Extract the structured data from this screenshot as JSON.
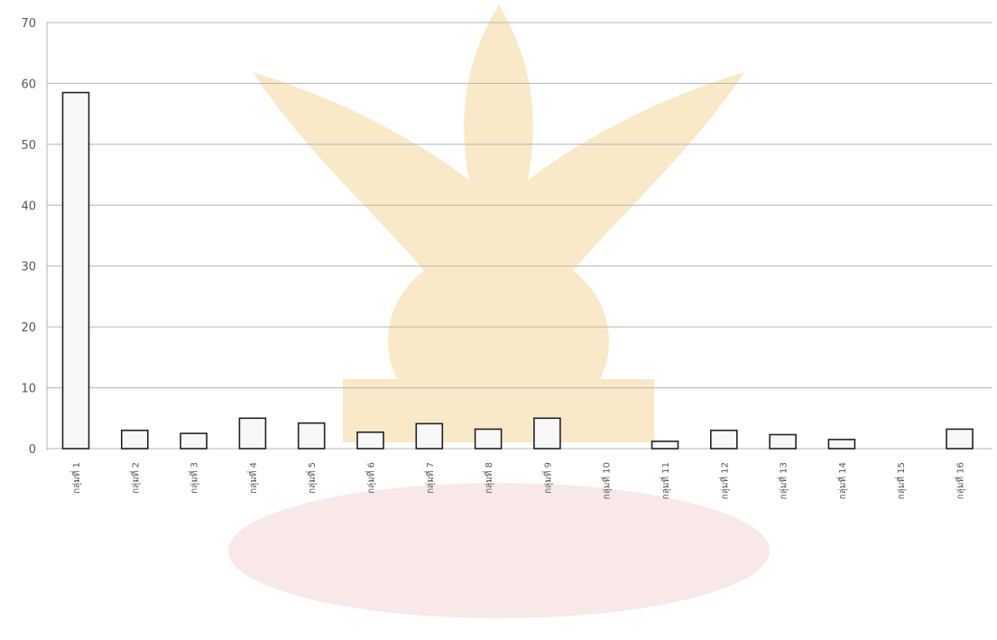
{
  "chart_data": {
    "type": "bar",
    "title": "",
    "xlabel": "",
    "ylabel": "",
    "ylim": [
      0,
      70
    ],
    "yticks": [
      0,
      10,
      20,
      30,
      40,
      50,
      60,
      70
    ],
    "ytick_labels": [
      "0",
      "10",
      "20",
      "30",
      "40",
      "50",
      "60",
      "70"
    ],
    "grid": true,
    "categories": [
      "กลุ่มที่ 1",
      "กลุ่มที่ 2",
      "กลุ่มที่ 3",
      "กลุ่มที่ 4",
      "กลุ่มที่ 5",
      "กลุ่มที่ 6",
      "กลุ่มที่ 7",
      "กลุ่มที่ 8",
      "กลุ่มที่ 9",
      "กลุ่มที่ 10",
      "กลุ่มที่ 11",
      "กลุ่มที่ 12",
      "กลุ่มที่ 13",
      "กลุ่มที่ 14",
      "กลุ่มที่ 15",
      "กลุ่มที่ 16"
    ],
    "values": [
      58.5,
      3.0,
      2.5,
      5.0,
      4.2,
      2.7,
      4.1,
      3.2,
      5.0,
      0,
      1.2,
      3.0,
      2.3,
      1.5,
      0,
      3.2
    ],
    "colors": {
      "bar_fill": "#f7f7f7",
      "bar_stroke": "#222222",
      "grid": "#b5b5b5",
      "text": "#555555"
    }
  }
}
